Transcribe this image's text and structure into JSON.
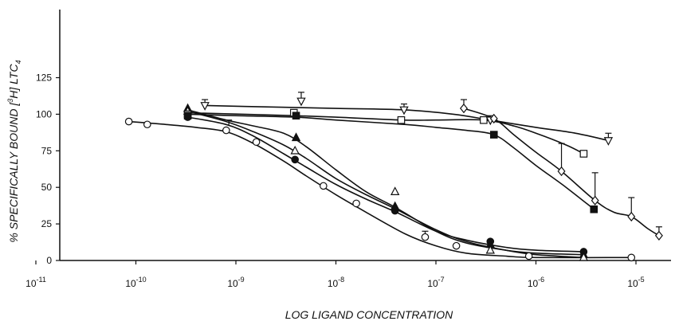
{
  "chart_data": {
    "type": "line",
    "title": "",
    "xlabel": "LOG LIGAND CONCENTRATION",
    "ylabel_parts": [
      "% SPECIFICALLY BOUND [",
      "3",
      "H] LTC",
      "4"
    ],
    "xscale": "log",
    "xlim": [
      1e-11,
      1e-05
    ],
    "ylim": [
      0,
      135
    ],
    "grid": false,
    "legend": "none",
    "x_ticks": [
      {
        "exp": "-11"
      },
      {
        "exp": "-10"
      },
      {
        "exp": "-9"
      },
      {
        "exp": "-8"
      },
      {
        "exp": "-7"
      },
      {
        "exp": "-6"
      },
      {
        "exp": "-5"
      }
    ],
    "x_tick_base": "10",
    "y_ticks": [
      "0",
      "25",
      "50",
      "75",
      "100",
      "125"
    ],
    "series": [
      {
        "marker": "circle-open",
        "points": [
          [
            8.5e-11,
            95
          ],
          [
            1.3e-10,
            93
          ],
          [
            3.3e-10,
            99
          ],
          [
            8e-10,
            89
          ],
          [
            1.6e-09,
            81
          ],
          [
            7.5e-09,
            51
          ],
          [
            1.6e-08,
            39
          ],
          [
            7.8e-08,
            16
          ],
          [
            1.6e-07,
            10
          ],
          [
            8.5e-07,
            3
          ],
          [
            9e-06,
            2
          ]
        ],
        "curve": [
          [
            8.5e-11,
            95
          ],
          [
            2e-10,
            93
          ],
          [
            4e-10,
            91
          ],
          [
            8e-10,
            88
          ],
          [
            1.5e-09,
            80
          ],
          [
            3e-09,
            68
          ],
          [
            5e-09,
            58
          ],
          [
            1e-08,
            45
          ],
          [
            2e-08,
            33
          ],
          [
            5e-08,
            18
          ],
          [
            1e-07,
            10
          ],
          [
            2e-07,
            5
          ],
          [
            5e-07,
            3
          ],
          [
            1e-06,
            2
          ],
          [
            9e-06,
            2
          ]
        ]
      },
      {
        "marker": "circle-filled",
        "points": [
          [
            3.3e-10,
            98
          ],
          [
            3.9e-09,
            69
          ],
          [
            3.9e-08,
            34
          ],
          [
            3.5e-07,
            13
          ],
          [
            3e-06,
            6
          ]
        ],
        "curve": [
          [
            3.3e-10,
            98
          ],
          [
            8e-10,
            93
          ],
          [
            1.5e-09,
            85
          ],
          [
            3e-09,
            73
          ],
          [
            5e-09,
            64
          ],
          [
            1e-08,
            52
          ],
          [
            2e-08,
            42
          ],
          [
            4e-08,
            33
          ],
          [
            1e-07,
            20
          ],
          [
            2e-07,
            14
          ],
          [
            5e-07,
            9
          ],
          [
            1e-06,
            7
          ],
          [
            3e-06,
            6
          ]
        ]
      },
      {
        "marker": "triangle-up-filled",
        "points": [
          [
            3.3e-10,
            104
          ],
          [
            4e-09,
            84
          ],
          [
            3.9e-08,
            37
          ],
          [
            3.5e-07,
            11
          ],
          [
            3e-06,
            4
          ]
        ],
        "curve": [
          [
            3.3e-10,
            103
          ],
          [
            8e-10,
            96
          ],
          [
            1.5e-09,
            92
          ],
          [
            3e-09,
            87
          ],
          [
            5e-09,
            78
          ],
          [
            1e-08,
            62
          ],
          [
            2e-08,
            47
          ],
          [
            4e-08,
            36
          ],
          [
            1e-07,
            20
          ],
          [
            2e-07,
            12
          ],
          [
            5e-07,
            7
          ],
          [
            1e-06,
            5
          ],
          [
            3e-06,
            4
          ]
        ]
      },
      {
        "marker": "triangle-up-open",
        "points": [
          [
            3.3e-10,
            102
          ],
          [
            3.9e-09,
            75
          ],
          [
            3.9e-08,
            47
          ],
          [
            3.5e-07,
            7
          ],
          [
            3e-06,
            2
          ]
        ],
        "curve": [
          [
            3.3e-10,
            102
          ],
          [
            8e-10,
            95
          ],
          [
            1.5e-09,
            88
          ],
          [
            3e-09,
            79
          ],
          [
            5e-09,
            70
          ],
          [
            1e-08,
            56
          ],
          [
            2e-08,
            45
          ],
          [
            4e-08,
            35
          ],
          [
            1e-07,
            21
          ],
          [
            2e-07,
            13
          ],
          [
            5e-07,
            7
          ],
          [
            1e-06,
            4
          ],
          [
            3e-06,
            2
          ]
        ]
      },
      {
        "marker": "square-open",
        "points": [
          [
            3.3e-10,
            100
          ],
          [
            3.8e-09,
            101
          ],
          [
            4.5e-08,
            96
          ],
          [
            3e-07,
            96
          ],
          [
            3e-06,
            73
          ]
        ],
        "curve": [
          [
            3.3e-10,
            101
          ],
          [
            3.8e-09,
            99
          ],
          [
            1e-08,
            98
          ],
          [
            4.5e-08,
            96
          ],
          [
            1e-07,
            96
          ],
          [
            3e-07,
            96
          ],
          [
            6e-07,
            92
          ],
          [
            1e-06,
            87
          ],
          [
            2e-06,
            79
          ],
          [
            3e-06,
            73
          ]
        ]
      },
      {
        "marker": "square-filled",
        "points": [
          [
            3.3e-10,
            99
          ],
          [
            4e-09,
            99
          ],
          [
            3.8e-07,
            86
          ],
          [
            3.8e-06,
            35
          ]
        ],
        "curve": [
          [
            3.3e-10,
            100
          ],
          [
            1e-09,
            99
          ],
          [
            4e-09,
            98
          ],
          [
            1e-08,
            96
          ],
          [
            5e-08,
            93
          ],
          [
            1e-07,
            91
          ],
          [
            2e-07,
            89
          ],
          [
            3.8e-07,
            86
          ],
          [
            6e-07,
            77
          ],
          [
            1e-06,
            65
          ],
          [
            2e-06,
            50
          ],
          [
            3.8e-06,
            35
          ]
        ]
      },
      {
        "marker": "triangle-down-open",
        "points": [
          [
            4.9e-10,
            106
          ],
          [
            4.5e-09,
            109
          ],
          [
            4.8e-08,
            103
          ],
          [
            3.5e-07,
            96
          ],
          [
            5.3e-06,
            82
          ]
        ],
        "curve": [
          [
            4.9e-10,
            106
          ],
          [
            2e-09,
            105
          ],
          [
            1e-08,
            104
          ],
          [
            4.8e-08,
            103
          ],
          [
            1.5e-07,
            100
          ],
          [
            3.5e-07,
            96
          ],
          [
            1e-06,
            91
          ],
          [
            2.5e-06,
            87
          ],
          [
            5.3e-06,
            82
          ]
        ]
      },
      {
        "marker": "diamond-open",
        "points": [
          [
            1.9e-07,
            104
          ],
          [
            3.8e-07,
            97
          ],
          [
            1.8e-06,
            61
          ],
          [
            3.9e-06,
            41
          ],
          [
            9e-06,
            30
          ],
          [
            1.7e-05,
            17
          ]
        ],
        "curve": [
          [
            1.9e-07,
            104
          ],
          [
            3.8e-07,
            97
          ],
          [
            6e-07,
            86
          ],
          [
            1e-06,
            74
          ],
          [
            1.8e-06,
            61
          ],
          [
            3.9e-06,
            41
          ],
          [
            6e-06,
            33
          ],
          [
            9e-06,
            30
          ],
          [
            1.3e-05,
            22
          ],
          [
            1.7e-05,
            17
          ]
        ]
      }
    ],
    "error_bars": [
      {
        "x": 8.5e-10,
        "y": 92,
        "y_upper": 96
      },
      {
        "x": 4.9e-10,
        "y": 106,
        "y_upper": 110
      },
      {
        "x": 4.5e-09,
        "y": 109,
        "y_upper": 115
      },
      {
        "x": 4.8e-08,
        "y": 103,
        "y_upper": 107
      },
      {
        "x": 3.5e-07,
        "y": 96,
        "y_upper": 99
      },
      {
        "x": 5.3e-06,
        "y": 82,
        "y_upper": 87
      },
      {
        "x": 1.9e-07,
        "y": 104,
        "y_upper": 110
      },
      {
        "x": 1.8e-06,
        "y": 61,
        "y_upper": 80
      },
      {
        "x": 3.9e-06,
        "y": 41,
        "y_upper": 60
      },
      {
        "x": 9e-06,
        "y": 30,
        "y_upper": 43
      },
      {
        "x": 1.7e-05,
        "y": 17,
        "y_upper": 23
      },
      {
        "x": 7.8e-08,
        "y": 16,
        "y_upper": 20
      }
    ]
  }
}
